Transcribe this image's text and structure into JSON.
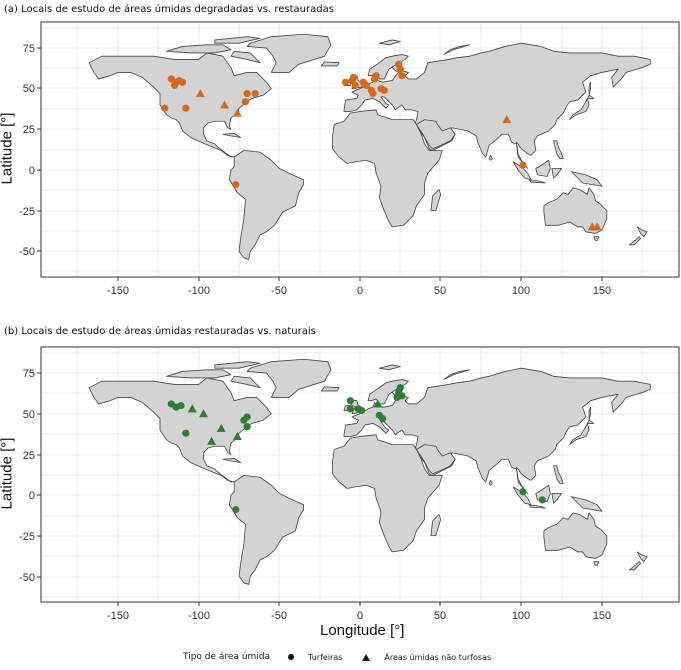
{
  "chart_data": [
    {
      "type": "scatter",
      "subtype": "geographic-map",
      "title": "(a) Locais de estudo de áreas úmidas degradadas vs. restauradas",
      "xlabel": "",
      "ylabel": "Latitude [°]",
      "xlim": [
        -190,
        195
      ],
      "ylim": [
        -65,
        90
      ],
      "x_ticks": [
        -150,
        -100,
        -50,
        0,
        50,
        100,
        150
      ],
      "y_ticks": [
        75,
        50,
        25,
        0,
        -25,
        -50
      ],
      "grid": true,
      "color": "#D2691E",
      "points": [
        {
          "lon": -117,
          "lat": 56,
          "shape": "circle"
        },
        {
          "lon": -114,
          "lat": 54,
          "shape": "circle"
        },
        {
          "lon": -112,
          "lat": 55,
          "shape": "circle"
        },
        {
          "lon": -110,
          "lat": 54,
          "shape": "circle"
        },
        {
          "lon": -115,
          "lat": 52,
          "shape": "circle"
        },
        {
          "lon": -99,
          "lat": 47,
          "shape": "triangle"
        },
        {
          "lon": -121,
          "lat": 38,
          "shape": "circle"
        },
        {
          "lon": -108,
          "lat": 38,
          "shape": "circle"
        },
        {
          "lon": -84,
          "lat": 40,
          "shape": "triangle"
        },
        {
          "lon": -70,
          "lat": 47,
          "shape": "circle"
        },
        {
          "lon": -65,
          "lat": 47,
          "shape": "circle"
        },
        {
          "lon": -71,
          "lat": 42,
          "shape": "circle"
        },
        {
          "lon": -76,
          "lat": 35,
          "shape": "triangle"
        },
        {
          "lon": -77,
          "lat": -9,
          "shape": "circle"
        },
        {
          "lon": -9,
          "lat": 54,
          "shape": "circle"
        },
        {
          "lon": -5,
          "lat": 55,
          "shape": "circle"
        },
        {
          "lon": -4,
          "lat": 57,
          "shape": "circle"
        },
        {
          "lon": -3,
          "lat": 52,
          "shape": "circle"
        },
        {
          "lon": 2,
          "lat": 54,
          "shape": "circle"
        },
        {
          "lon": 4,
          "lat": 52,
          "shape": "circle"
        },
        {
          "lon": 7,
          "lat": 49,
          "shape": "circle"
        },
        {
          "lon": 9,
          "lat": 56,
          "shape": "circle"
        },
        {
          "lon": 10,
          "lat": 58,
          "shape": "circle"
        },
        {
          "lon": 8,
          "lat": 47,
          "shape": "circle"
        },
        {
          "lon": 13,
          "lat": 50,
          "shape": "circle"
        },
        {
          "lon": 15,
          "lat": 49,
          "shape": "circle"
        },
        {
          "lon": 24,
          "lat": 65,
          "shape": "circle"
        },
        {
          "lon": 25,
          "lat": 62,
          "shape": "circle"
        },
        {
          "lon": 26,
          "lat": 58,
          "shape": "circle"
        },
        {
          "lon": 91,
          "lat": 31,
          "shape": "triangle"
        },
        {
          "lon": 101,
          "lat": 3,
          "shape": "circle"
        },
        {
          "lon": 144,
          "lat": -35,
          "shape": "triangle"
        },
        {
          "lon": 147,
          "lat": -35,
          "shape": "triangle"
        }
      ]
    },
    {
      "type": "scatter",
      "subtype": "geographic-map",
      "title": "(b) Locais de estudo de áreas úmidas restauradas vs. naturais",
      "xlabel": "Longitude [°]",
      "ylabel": "Latitude [°]",
      "xlim": [
        -190,
        195
      ],
      "ylim": [
        -65,
        90
      ],
      "x_ticks": [
        -150,
        -100,
        -50,
        0,
        50,
        100,
        150
      ],
      "y_ticks": [
        75,
        50,
        25,
        0,
        -25,
        -50
      ],
      "grid": true,
      "color": "#2E7D32",
      "points": [
        {
          "lon": -117,
          "lat": 56,
          "shape": "circle"
        },
        {
          "lon": -114,
          "lat": 54,
          "shape": "circle"
        },
        {
          "lon": -111,
          "lat": 55,
          "shape": "circle"
        },
        {
          "lon": -104,
          "lat": 53,
          "shape": "triangle"
        },
        {
          "lon": -97,
          "lat": 50,
          "shape": "triangle"
        },
        {
          "lon": -108,
          "lat": 38,
          "shape": "circle"
        },
        {
          "lon": -86,
          "lat": 41,
          "shape": "triangle"
        },
        {
          "lon": -92,
          "lat": 33,
          "shape": "triangle"
        },
        {
          "lon": -70,
          "lat": 48,
          "shape": "circle"
        },
        {
          "lon": -72,
          "lat": 46,
          "shape": "circle"
        },
        {
          "lon": -70,
          "lat": 42,
          "shape": "circle"
        },
        {
          "lon": -76,
          "lat": 36,
          "shape": "triangle"
        },
        {
          "lon": -77,
          "lat": -9,
          "shape": "circle"
        },
        {
          "lon": -6,
          "lat": 58,
          "shape": "circle"
        },
        {
          "lon": -6,
          "lat": 53,
          "shape": "circle"
        },
        {
          "lon": -1,
          "lat": 53,
          "shape": "circle"
        },
        {
          "lon": 1,
          "lat": 52,
          "shape": "circle"
        },
        {
          "lon": 11,
          "lat": 56,
          "shape": "triangle"
        },
        {
          "lon": 12,
          "lat": 49,
          "shape": "circle"
        },
        {
          "lon": 14,
          "lat": 47,
          "shape": "circle"
        },
        {
          "lon": 23,
          "lat": 60,
          "shape": "circle"
        },
        {
          "lon": 24,
          "lat": 63,
          "shape": "circle"
        },
        {
          "lon": 25,
          "lat": 66,
          "shape": "circle"
        },
        {
          "lon": 26,
          "lat": 61,
          "shape": "circle"
        },
        {
          "lon": 101,
          "lat": 2,
          "shape": "circle"
        },
        {
          "lon": 113,
          "lat": -3,
          "shape": "circle"
        }
      ]
    }
  ],
  "panels": {
    "a": {
      "title": "(a) Locais de estudo de áreas úmidas degradadas vs. restauradas",
      "ylabel": "Latitude [°]"
    },
    "b": {
      "title": "(b) Locais de estudo de áreas úmidas restauradas vs. naturais",
      "ylabel": "Latitude [°]",
      "xlabel": "Longitude [°]"
    }
  },
  "axis": {
    "x_ticks": [
      "-150",
      "-100",
      "-50",
      "0",
      "50",
      "100",
      "150"
    ],
    "y_ticks": [
      "75",
      "50",
      "25",
      "0",
      "-25",
      "-50"
    ]
  },
  "legend": {
    "title": "Tipo de área úmida",
    "items": [
      {
        "label": "Turfeiras",
        "shape": "circle"
      },
      {
        "label": "Áreas úmidas não turfosas",
        "shape": "triangle"
      }
    ]
  },
  "colors": {
    "degraded_restored": "#D2691E",
    "restored_natural": "#2E7D32",
    "land": "#D3D3D3",
    "border": "#333333",
    "grid": "#EBEBEB"
  }
}
